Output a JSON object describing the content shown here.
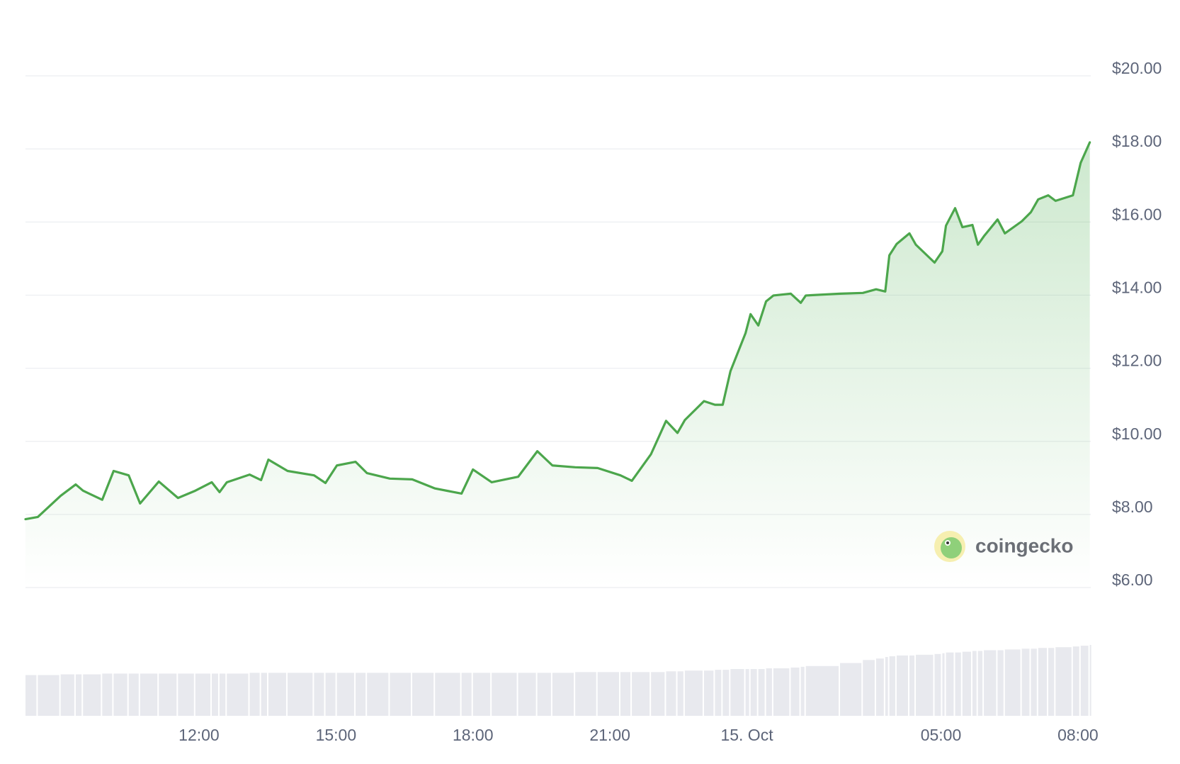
{
  "chart_data": {
    "type": "line",
    "x": [
      -3.8,
      -3.53,
      -3.03,
      -2.7,
      -2.54,
      -2.12,
      -1.87,
      -1.54,
      -1.29,
      -0.88,
      -0.46,
      -0.08,
      0.28,
      0.45,
      0.61,
      1.11,
      1.36,
      1.52,
      1.94,
      2.52,
      2.77,
      3.02,
      3.43,
      3.68,
      4.18,
      4.67,
      5.17,
      5.75,
      6.0,
      6.41,
      6.99,
      7.41,
      7.74,
      8.24,
      8.73,
      9.23,
      9.48,
      9.9,
      10.23,
      10.48,
      10.64,
      11.06,
      11.3,
      11.47,
      11.64,
      11.97,
      12.08,
      12.25,
      12.42,
      12.58,
      12.96,
      13.18,
      13.29,
      14.04,
      14.54,
      14.83,
      15.03,
      15.12,
      15.28,
      15.56,
      15.7,
      16.11,
      16.28,
      16.36,
      16.56,
      16.72,
      16.94,
      17.06,
      17.19,
      17.49,
      17.65,
      18.02,
      18.22,
      18.38,
      18.6,
      18.76,
      19.14,
      19.31,
      19.51
    ],
    "series": [
      {
        "color": "#4ca64c",
        "values": [
          7.87,
          7.93,
          8.51,
          8.82,
          8.65,
          8.4,
          9.19,
          9.07,
          8.3,
          8.9,
          8.45,
          8.65,
          8.88,
          8.61,
          8.88,
          9.09,
          8.94,
          9.5,
          9.19,
          9.07,
          8.86,
          9.34,
          9.44,
          9.13,
          8.98,
          8.96,
          8.71,
          8.57,
          9.23,
          8.88,
          9.03,
          9.73,
          9.34,
          9.29,
          9.27,
          9.07,
          8.92,
          9.65,
          10.56,
          10.23,
          10.58,
          11.1,
          11.0,
          11.0,
          11.92,
          12.96,
          13.48,
          13.17,
          13.83,
          13.99,
          14.04,
          13.79,
          13.99,
          14.04,
          14.06,
          14.16,
          14.1,
          15.09,
          15.4,
          15.69,
          15.38,
          14.89,
          15.2,
          15.9,
          16.38,
          15.86,
          15.92,
          15.38,
          15.61,
          16.07,
          15.69,
          16.02,
          16.27,
          16.62,
          16.73,
          16.58,
          16.73,
          17.62,
          18.18
        ]
      }
    ],
    "xlim": [
      -3.8,
      19.5
    ],
    "xticks": [
      {
        "value": 0,
        "label": "12:00"
      },
      {
        "value": 3,
        "label": "15:00"
      },
      {
        "value": 6,
        "label": "18:00"
      },
      {
        "value": 9,
        "label": "21:00"
      },
      {
        "value": 12,
        "label": "15. Oct"
      },
      {
        "value": 16.25,
        "label": "05:00"
      },
      {
        "value": 19.25,
        "label": "08:00"
      }
    ],
    "ylim": [
      6,
      20
    ],
    "yticks": [
      {
        "value": 20,
        "label": "$20.00"
      },
      {
        "value": 18,
        "label": "$18.00"
      },
      {
        "value": 16,
        "label": "$16.00"
      },
      {
        "value": 14,
        "label": "$14.00"
      },
      {
        "value": 12,
        "label": "$12.00"
      },
      {
        "value": 10,
        "label": "$10.00"
      },
      {
        "value": 8,
        "label": "$8.00"
      },
      {
        "value": 6,
        "label": "$6.00"
      }
    ],
    "grid": true,
    "volume": {
      "color": "#e8e9ee",
      "values": [
        54,
        54,
        55,
        55,
        55,
        56,
        56,
        56,
        56,
        56,
        56,
        56,
        56,
        56,
        56,
        57,
        57,
        57,
        57,
        57,
        57,
        57,
        57,
        57,
        57,
        57,
        57,
        57,
        57,
        57,
        57,
        57,
        57,
        58,
        58,
        58,
        58,
        58,
        59,
        59,
        60,
        60,
        61,
        61,
        62,
        62,
        62,
        62,
        63,
        63,
        64,
        65,
        66,
        70,
        74,
        76,
        78,
        79,
        80,
        80,
        81,
        82,
        83,
        84,
        84,
        85,
        86,
        86,
        87,
        87,
        88,
        89,
        89,
        90,
        90,
        91,
        92,
        93,
        94
      ]
    },
    "watermark": "coingecko"
  }
}
